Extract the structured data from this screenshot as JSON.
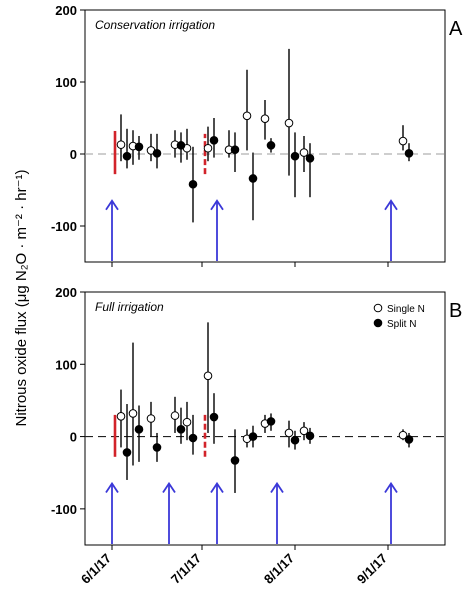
{
  "chart_data": {
    "type": "scatter",
    "shared": {
      "ylabel": "Nitrous oxide flux (μg N₂O · m⁻² · hr⁻¹)",
      "x_tick_labels": [
        "6/1/17",
        "7/1/17",
        "8/1/17",
        "9/1/17"
      ],
      "x_tick_days": [
        0,
        30,
        61,
        92
      ],
      "xlim_days": [
        -9,
        111
      ],
      "ylim": [
        -150,
        200
      ],
      "y_ticks": [
        -100,
        0,
        100,
        200
      ],
      "zero_line": true,
      "legend_placement": "top-right of panel B"
    },
    "panels": [
      {
        "letter": "A",
        "subtitle": "Conservation irrigation",
        "series": [
          {
            "name": "Single N",
            "marker": "open-circle",
            "points": [
              {
                "x": 3,
                "y": 13,
                "lo": -10,
                "hi": 55
              },
              {
                "x": 7,
                "y": 11,
                "lo": -15,
                "hi": 33
              },
              {
                "x": 13,
                "y": 5,
                "lo": -10,
                "hi": 28
              },
              {
                "x": 21,
                "y": 13,
                "lo": -5,
                "hi": 33
              },
              {
                "x": 25,
                "y": 8,
                "lo": -8,
                "hi": 35
              },
              {
                "x": 32,
                "y": 8,
                "lo": -10,
                "hi": 38
              },
              {
                "x": 39,
                "y": 6,
                "lo": -5,
                "hi": 33
              },
              {
                "x": 45,
                "y": 53,
                "lo": 5,
                "hi": 117
              },
              {
                "x": 51,
                "y": 49,
                "lo": 20,
                "hi": 75
              },
              {
                "x": 59,
                "y": 43,
                "lo": -30,
                "hi": 146
              },
              {
                "x": 64,
                "y": 2,
                "lo": -25,
                "hi": 25
              },
              {
                "x": 97,
                "y": 18,
                "lo": 5,
                "hi": 40
              }
            ]
          },
          {
            "name": "Split N",
            "marker": "filled-circle",
            "points": [
              {
                "x": 5,
                "y": -3,
                "lo": -20,
                "hi": 35
              },
              {
                "x": 9,
                "y": 10,
                "lo": -8,
                "hi": 25
              },
              {
                "x": 15,
                "y": 1,
                "lo": -20,
                "hi": 28
              },
              {
                "x": 23,
                "y": 12,
                "lo": -12,
                "hi": 30
              },
              {
                "x": 27,
                "y": -42,
                "lo": -95,
                "hi": 10
              },
              {
                "x": 34,
                "y": 19,
                "lo": -5,
                "hi": 50
              },
              {
                "x": 41,
                "y": 6,
                "lo": -25,
                "hi": 30
              },
              {
                "x": 47,
                "y": -34,
                "lo": -92,
                "hi": 2
              },
              {
                "x": 53,
                "y": 12,
                "lo": 2,
                "hi": 22
              },
              {
                "x": 61,
                "y": -3,
                "lo": -60,
                "hi": 30
              },
              {
                "x": 66,
                "y": -6,
                "lo": -60,
                "hi": 15
              },
              {
                "x": 99,
                "y": 1,
                "lo": -10,
                "hi": 15
              }
            ]
          }
        ],
        "blue_arrows_days": [
          0,
          35,
          93
        ],
        "red_bars": [
          {
            "x": 1,
            "lo": -28,
            "hi": 32
          },
          {
            "x": 31,
            "lo": -28,
            "hi": 28
          }
        ]
      },
      {
        "letter": "B",
        "subtitle": "Full irrigation",
        "series": [
          {
            "name": "Single N",
            "marker": "open-circle",
            "points": [
              {
                "x": 3,
                "y": 28,
                "lo": -15,
                "hi": 65
              },
              {
                "x": 7,
                "y": 32,
                "lo": -40,
                "hi": 130
              },
              {
                "x": 13,
                "y": 25,
                "lo": 0,
                "hi": 48
              },
              {
                "x": 21,
                "y": 29,
                "lo": 5,
                "hi": 55
              },
              {
                "x": 25,
                "y": 20,
                "lo": -5,
                "hi": 48
              },
              {
                "x": 32,
                "y": 84,
                "lo": 5,
                "hi": 158
              },
              {
                "x": 45,
                "y": -3,
                "lo": -15,
                "hi": 10
              },
              {
                "x": 51,
                "y": 18,
                "lo": 5,
                "hi": 30
              },
              {
                "x": 59,
                "y": 5,
                "lo": -15,
                "hi": 22
              },
              {
                "x": 64,
                "y": 8,
                "lo": -5,
                "hi": 20
              },
              {
                "x": 97,
                "y": 2,
                "lo": -5,
                "hi": 10
              }
            ]
          },
          {
            "name": "Split N",
            "marker": "filled-circle",
            "points": [
              {
                "x": 5,
                "y": -22,
                "lo": -60,
                "hi": 45
              },
              {
                "x": 9,
                "y": 10,
                "lo": -35,
                "hi": 43
              },
              {
                "x": 15,
                "y": -15,
                "lo": -35,
                "hi": 5
              },
              {
                "x": 23,
                "y": 10,
                "lo": -10,
                "hi": 40
              },
              {
                "x": 27,
                "y": -2,
                "lo": -25,
                "hi": 30
              },
              {
                "x": 34,
                "y": 27,
                "lo": -10,
                "hi": 60
              },
              {
                "x": 41,
                "y": -33,
                "lo": -78,
                "hi": 10
              },
              {
                "x": 47,
                "y": 0,
                "lo": -15,
                "hi": 15
              },
              {
                "x": 53,
                "y": 21,
                "lo": 8,
                "hi": 32
              },
              {
                "x": 61,
                "y": -5,
                "lo": -18,
                "hi": 8
              },
              {
                "x": 66,
                "y": 1,
                "lo": -10,
                "hi": 12
              },
              {
                "x": 99,
                "y": -4,
                "lo": -15,
                "hi": 5
              }
            ]
          }
        ],
        "blue_arrows_days": [
          0,
          19,
          35,
          55,
          93
        ],
        "red_bars": [
          {
            "x": 1,
            "lo": -28,
            "hi": 30
          },
          {
            "x": 31,
            "lo": -28,
            "hi": 30
          }
        ]
      }
    ]
  },
  "colors": {
    "axis": "#000000",
    "zero_line_a": "#9e9e9e",
    "zero_line_b": "#222222",
    "arrow": "#3b38d8",
    "red_bar": "#d2232a",
    "point": "#000000"
  }
}
